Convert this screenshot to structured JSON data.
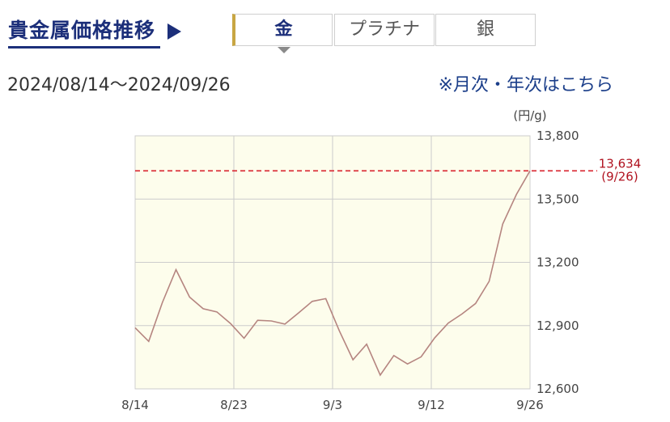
{
  "header": {
    "title": "貴金属価格推移"
  },
  "tabs": [
    {
      "label": "金",
      "active": true
    },
    {
      "label": "プラチナ",
      "active": false
    },
    {
      "label": "銀",
      "active": false
    }
  ],
  "period": {
    "text": "2024/08/14〜2024/09/26"
  },
  "links": {
    "monthly_yearly": "※月次・年次はこちら"
  },
  "colors": {
    "accent": "#1c2f7a",
    "tab_marker": "#c8a643",
    "plot_bg": "#fdfdec",
    "line": "#b58580",
    "reference": "#d9232e"
  },
  "chart_data": {
    "type": "line",
    "unit_label": "(円/g)",
    "x_tick_labels": [
      "8/14",
      "8/23",
      "9/3",
      "9/12",
      "9/26"
    ],
    "ylim": [
      12600,
      13800
    ],
    "y_ticks": [
      12600,
      12900,
      13200,
      13500,
      13800
    ],
    "y_tick_labels": [
      "12,600",
      "12,900",
      "13,200",
      "13,500",
      "13,800"
    ],
    "grid": true,
    "reference": {
      "value": 13634,
      "label": "13,634",
      "date_label": "(9/26)"
    },
    "series": [
      {
        "values": [
          12890,
          12825,
          13010,
          13165,
          13035,
          12980,
          12965,
          12910,
          12840,
          12925,
          12922,
          12907,
          12960,
          13015,
          13028,
          12875,
          12738,
          12812,
          12665,
          12758,
          12718,
          12752,
          12842,
          12912,
          12955,
          13005,
          13110,
          13382,
          13522,
          13634
        ]
      }
    ]
  }
}
